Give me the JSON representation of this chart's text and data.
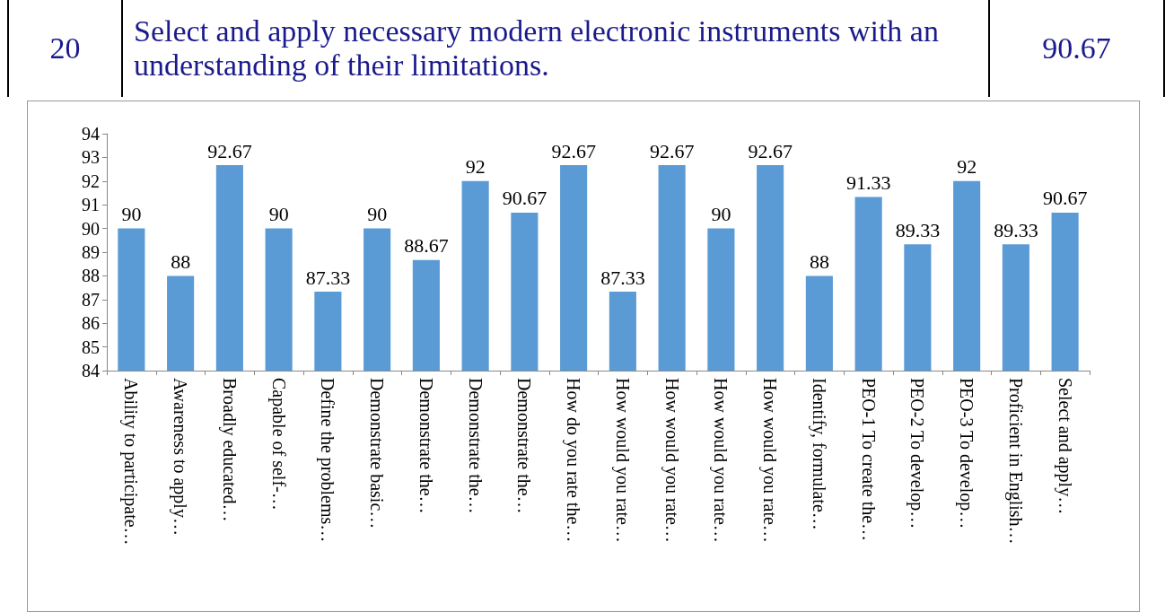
{
  "chart_data": {
    "type": "bar",
    "annotations": [
      "20",
      "Select and apply necessary modern electronic instruments with an understanding of their limitations.",
      "90.67"
    ],
    "categories": [
      "Ability to participate…",
      "Awareness to apply…",
      "Broadly educated…",
      "Capable of self-…",
      "Define the problems…",
      "Demonstrate basic…",
      "Demonstrate the…",
      "Demonstrate the…",
      "Demonstrate the…",
      "How do you rate the…",
      "How would you rate…",
      "How would you rate…",
      "How would you rate…",
      "How would you rate…",
      "Identify, formulate…",
      "PEO-1 To create the…",
      "PEO-2 To develop…",
      "PEO-3 To develop…",
      "Proficient in English…",
      "Select and apply…"
    ],
    "values": [
      90,
      88,
      92.67,
      90,
      87.33,
      90,
      88.67,
      92,
      90.67,
      92.67,
      87.33,
      92.67,
      90,
      92.67,
      88,
      91.33,
      89.33,
      92,
      89.33,
      90.67
    ],
    "color": "#5b9bd5",
    "ylim": [
      84,
      94
    ],
    "yticks": [
      84,
      85,
      86,
      87,
      88,
      89,
      90,
      91,
      92,
      93,
      94
    ],
    "data_labels": true
  }
}
